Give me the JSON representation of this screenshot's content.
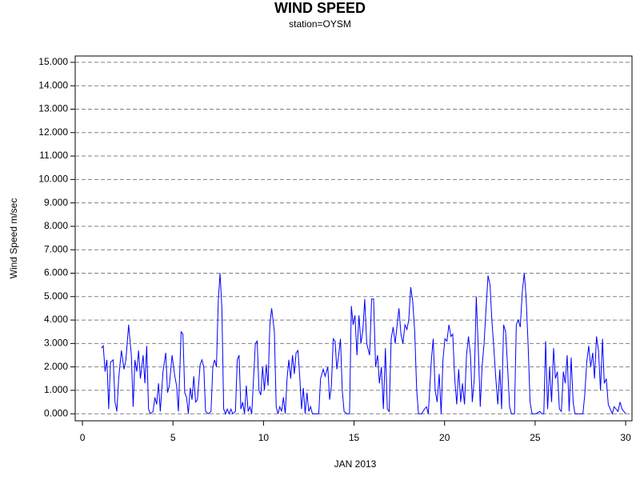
{
  "chart_data": {
    "type": "line",
    "title": "WIND SPEED",
    "subtitle": "station=OYSM",
    "xlabel": "JAN 2013",
    "ylabel": "Wind Speed m/sec",
    "xlim": [
      -0.4,
      30.35
    ],
    "ylim": [
      -0.3,
      15.27
    ],
    "xticks": [
      0,
      5,
      10,
      15,
      20,
      25,
      30
    ],
    "yticks": [
      {
        "value": 0,
        "label": "0.000"
      },
      {
        "value": 1,
        "label": "1.000"
      },
      {
        "value": 2,
        "label": "2.000"
      },
      {
        "value": 3,
        "label": "3.000"
      },
      {
        "value": 4,
        "label": "4.000"
      },
      {
        "value": 5,
        "label": "5.000"
      },
      {
        "value": 6,
        "label": "6.000"
      },
      {
        "value": 7,
        "label": "7.000"
      },
      {
        "value": 8,
        "label": "8.000"
      },
      {
        "value": 9,
        "label": "9.000"
      },
      {
        "value": 10,
        "label": "10.000"
      },
      {
        "value": 11,
        "label": "11.000"
      },
      {
        "value": 12,
        "label": "12.000"
      },
      {
        "value": 13,
        "label": "13.000"
      },
      {
        "value": 14,
        "label": "14.000"
      },
      {
        "value": 15,
        "label": "15.000"
      }
    ],
    "grid": true,
    "x": [
      1.05,
      1.15,
      1.25,
      1.35,
      1.45,
      1.55,
      1.7,
      1.8,
      1.9,
      2.0,
      2.15,
      2.3,
      2.4,
      2.55,
      2.7,
      2.8,
      2.9,
      3.0,
      3.1,
      3.2,
      3.35,
      3.45,
      3.55,
      3.65,
      3.75,
      3.9,
      4.0,
      4.1,
      4.2,
      4.3,
      4.45,
      4.6,
      4.7,
      4.8,
      4.95,
      5.1,
      5.2,
      5.3,
      5.45,
      5.55,
      5.65,
      5.75,
      5.85,
      5.95,
      6.05,
      6.15,
      6.25,
      6.35,
      6.5,
      6.6,
      6.7,
      6.8,
      6.95,
      7.1,
      7.2,
      7.3,
      7.4,
      7.5,
      7.6,
      7.7,
      7.8,
      7.9,
      8.0,
      8.1,
      8.2,
      8.3,
      8.45,
      8.55,
      8.65,
      8.75,
      8.85,
      8.95,
      9.05,
      9.15,
      9.25,
      9.35,
      9.45,
      9.55,
      9.65,
      9.75,
      9.85,
      9.95,
      10.05,
      10.15,
      10.25,
      10.35,
      10.45,
      10.6,
      10.7,
      10.8,
      10.9,
      11.0,
      11.1,
      11.2,
      11.3,
      11.4,
      11.5,
      11.6,
      11.7,
      11.8,
      11.9,
      12.0,
      12.1,
      12.2,
      12.3,
      12.4,
      12.5,
      12.6,
      12.7,
      12.9,
      13.05,
      13.15,
      13.3,
      13.4,
      13.55,
      13.65,
      13.75,
      13.85,
      13.95,
      14.05,
      14.15,
      14.25,
      14.35,
      14.45,
      14.6,
      14.75,
      14.85,
      14.95,
      15.05,
      15.16,
      15.27,
      15.38,
      15.49,
      15.59,
      15.7,
      15.86,
      15.97,
      16.08,
      16.19,
      16.3,
      16.4,
      16.51,
      16.62,
      16.73,
      16.84,
      16.94,
      17.05,
      17.16,
      17.27,
      17.38,
      17.48,
      17.59,
      17.7,
      17.81,
      17.92,
      18.02,
      18.13,
      18.24,
      18.35,
      18.46,
      18.56,
      18.73,
      18.89,
      19.0,
      19.1,
      19.27,
      19.37,
      19.48,
      19.59,
      19.7,
      19.81,
      19.91,
      20.02,
      20.13,
      20.24,
      20.35,
      20.45,
      20.56,
      20.67,
      20.78,
      20.89,
      20.99,
      21.1,
      21.21,
      21.32,
      21.43,
      21.53,
      21.64,
      21.75,
      21.86,
      21.97,
      22.07,
      22.18,
      22.29,
      22.4,
      22.51,
      22.61,
      22.72,
      22.83,
      22.94,
      23.05,
      23.15,
      23.26,
      23.37,
      23.48,
      23.59,
      23.69,
      23.86,
      23.96,
      24.07,
      24.18,
      24.29,
      24.4,
      24.5,
      24.61,
      24.72,
      24.83,
      25.04,
      25.26,
      25.37,
      25.48,
      25.58,
      25.69,
      25.8,
      25.91,
      26.02,
      26.12,
      26.23,
      26.34,
      26.45,
      26.56,
      26.66,
      26.77,
      26.88,
      26.99,
      27.1,
      27.2,
      27.42,
      27.64,
      27.74,
      27.85,
      27.96,
      28.07,
      28.18,
      28.28,
      28.39,
      28.5,
      28.61,
      28.72,
      28.82,
      28.93,
      29.04,
      29.15,
      29.26,
      29.36,
      29.47,
      29.58,
      29.69,
      29.8,
      29.9,
      30.0
    ],
    "series": [
      {
        "color": "#0000ff",
        "values": [
          2.8,
          2.9,
          1.8,
          2.3,
          0.2,
          2.2,
          2.3,
          0.5,
          0.1,
          1.5,
          2.7,
          1.9,
          2.3,
          3.8,
          2.5,
          0.3,
          2.3,
          1.8,
          2.7,
          1.5,
          2.5,
          1.3,
          2.9,
          0.2,
          0,
          0.1,
          0.7,
          0.4,
          1.3,
          0.1,
          1.8,
          2.6,
          0.9,
          1.2,
          2.5,
          1.6,
          1.2,
          0.1,
          3.5,
          3.4,
          0.9,
          0.7,
          0,
          1.1,
          0.6,
          1.6,
          0.5,
          0.6,
          2.1,
          2.3,
          2.0,
          0.1,
          0,
          0.1,
          2.0,
          2.3,
          2.0,
          4.8,
          6.0,
          4.5,
          0.2,
          0,
          0.2,
          0,
          0.2,
          0,
          0.1,
          2.3,
          2.5,
          0.2,
          0.5,
          0,
          1.2,
          0.1,
          0.3,
          0,
          1.5,
          3.0,
          3.1,
          1.0,
          0.8,
          2.0,
          1.0,
          2.1,
          1.2,
          3.8,
          4.5,
          3.5,
          0.3,
          0,
          0.3,
          0.1,
          0.7,
          0,
          1.5,
          2.3,
          1.5,
          2.5,
          1.7,
          2.6,
          2.7,
          1.6,
          0.2,
          1.1,
          0,
          0.9,
          0.1,
          0.3,
          0,
          0,
          0,
          1.5,
          1.9,
          1.6,
          2.0,
          0.6,
          1.2,
          3.2,
          3.1,
          1.9,
          2.5,
          3.2,
          1.0,
          0.1,
          0,
          0,
          4.6,
          3.8,
          4.2,
          2.5,
          4.2,
          3.0,
          3.6,
          4.9,
          3.0,
          2.5,
          4.9,
          4.9,
          2.0,
          2.5,
          1.3,
          2.0,
          0.2,
          2.8,
          0.2,
          0.1,
          3.2,
          3.7,
          3.0,
          3.8,
          4.5,
          3.4,
          3.0,
          3.8,
          3.6,
          4.0,
          5.4,
          4.8,
          3.5,
          1.0,
          0,
          0,
          0.2,
          0.3,
          0,
          2.3,
          3.2,
          1.0,
          0.5,
          1.7,
          0,
          2.3,
          3.2,
          3.1,
          3.8,
          3.3,
          3.4,
          1.5,
          0.4,
          1.9,
          0.5,
          1.3,
          0.4,
          2.5,
          3.3,
          2.5,
          0.5,
          1.5,
          5.0,
          2.8,
          0.3,
          2.0,
          3.0,
          4.5,
          5.9,
          5.5,
          4.0,
          2.8,
          1.5,
          0.4,
          1.9,
          0.2,
          3.8,
          3.5,
          2.0,
          0.3,
          0,
          0,
          3.8,
          4.0,
          3.7,
          5.2,
          6.0,
          5.0,
          3.0,
          0.5,
          0,
          0,
          0.1,
          0,
          0,
          3.1,
          0.2,
          2.0,
          0.5,
          2.8,
          1.5,
          1.8,
          0.2,
          0.1,
          1.8,
          1.3,
          2.5,
          0.1,
          2.4,
          0.5,
          0,
          0,
          0,
          0.8,
          2.2,
          2.9,
          2.0,
          2.6,
          1.5,
          3.3,
          2.7,
          1.0,
          3.2,
          1.3,
          1.5,
          0.4,
          0.2,
          0,
          0.3,
          0.2,
          0.1,
          0.5,
          0.2,
          0.1,
          0
        ]
      }
    ]
  }
}
